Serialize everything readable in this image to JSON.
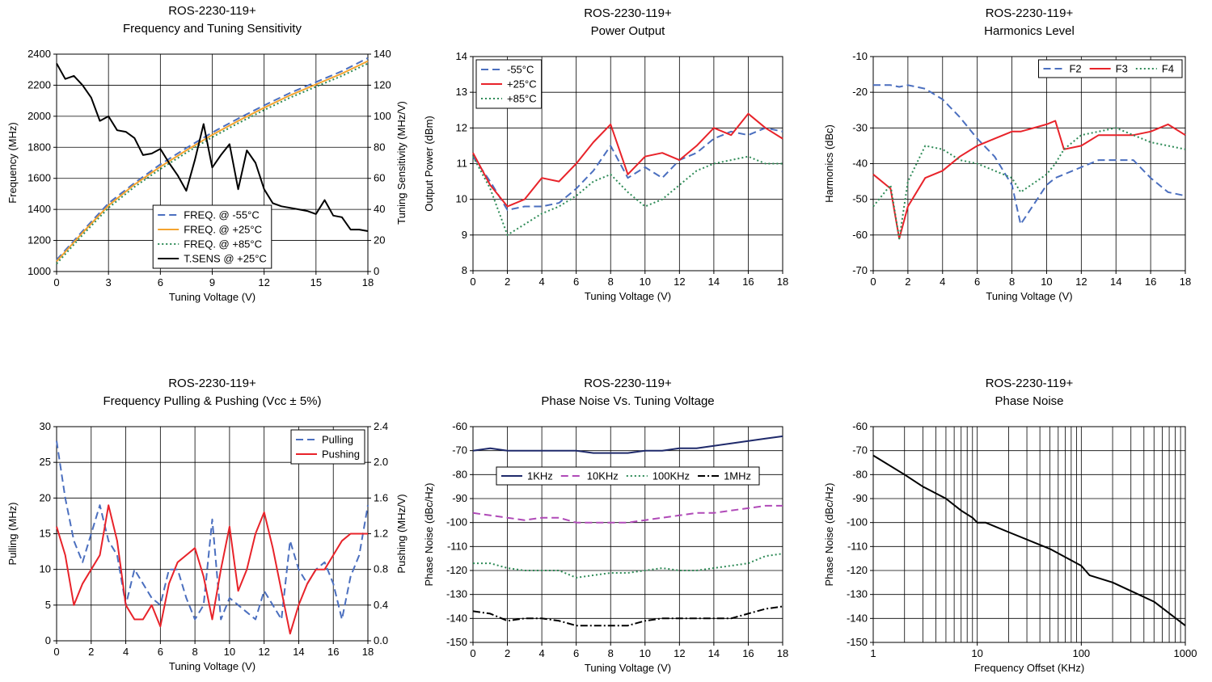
{
  "chart_data": [
    {
      "type": "line",
      "title": "ROS-2230-119+",
      "subtitle": "Frequency and Tuning Sensitivity",
      "xlabel": "Tuning Voltage (V)",
      "ylabel": "Frequency (MHz)",
      "y2label": "Tuning Sensitivity (MHz/V)",
      "xlim": [
        0,
        18
      ],
      "xticks": [
        0,
        3,
        6,
        9,
        12,
        15,
        18
      ],
      "ylim": [
        1000,
        2400
      ],
      "yticks": [
        1000,
        1200,
        1400,
        1600,
        1800,
        2000,
        2200,
        2400
      ],
      "y2lim": [
        0,
        140
      ],
      "y2ticks": [
        0,
        20,
        40,
        60,
        80,
        100,
        120,
        140
      ],
      "grid": true,
      "legend": "lower center",
      "legend_layout": "vertical",
      "series": [
        {
          "name": "FREQ. @ -55°C",
          "color": "#4b6fbf",
          "dash": "dashed",
          "x": [
            0,
            1.5,
            3,
            4.5,
            6,
            7.5,
            9,
            10.5,
            12,
            13.5,
            15,
            16.5,
            18
          ],
          "values": [
            1075,
            1260,
            1440,
            1570,
            1690,
            1795,
            1895,
            1985,
            2070,
            2150,
            2220,
            2290,
            2375
          ]
        },
        {
          "name": "FREQ. @ +25°C",
          "color": "#f4a430",
          "dash": "solid",
          "x": [
            0,
            1.5,
            3,
            4.5,
            6,
            7.5,
            9,
            10.5,
            12,
            13.5,
            15,
            16.5,
            18
          ],
          "values": [
            1065,
            1250,
            1425,
            1560,
            1675,
            1780,
            1880,
            1970,
            2055,
            2135,
            2205,
            2275,
            2355
          ]
        },
        {
          "name": "FREQ. @ +85°C",
          "color": "#2e8b57",
          "dash": "dotted",
          "x": [
            0,
            1.5,
            3,
            4.5,
            6,
            7.5,
            9,
            10.5,
            12,
            13.5,
            15,
            16.5,
            18
          ],
          "values": [
            1050,
            1235,
            1410,
            1545,
            1660,
            1765,
            1865,
            1955,
            2040,
            2120,
            2190,
            2260,
            2340
          ]
        },
        {
          "name": "T.SENS @ +25°C",
          "color": "#000000",
          "dash": "solid",
          "axis": "y2",
          "x": [
            0,
            0.5,
            1,
            1.5,
            2,
            2.5,
            3,
            3.5,
            4,
            4.5,
            5,
            5.5,
            6,
            6.5,
            7,
            7.5,
            8,
            8.5,
            9,
            9.5,
            10,
            10.5,
            11,
            11.5,
            12,
            12.5,
            13,
            13.5,
            14,
            14.5,
            15,
            15.5,
            16,
            16.5,
            17,
            17.5,
            18
          ],
          "values": [
            134,
            124,
            126,
            120,
            112,
            97,
            100,
            91,
            90,
            86,
            75,
            76,
            79,
            70,
            62,
            52,
            72,
            95,
            67,
            75,
            82,
            53,
            78,
            70,
            53,
            44,
            42,
            41,
            40,
            39,
            37,
            46,
            36,
            35,
            27,
            27,
            26
          ]
        }
      ]
    },
    {
      "type": "line",
      "title": "ROS-2230-119+",
      "subtitle": "Power Output",
      "xlabel": "Tuning Voltage (V)",
      "ylabel": "Output Power (dBm)",
      "xlim": [
        0,
        18
      ],
      "xticks": [
        0,
        2,
        4,
        6,
        8,
        10,
        12,
        14,
        16,
        18
      ],
      "ylim": [
        8,
        14
      ],
      "yticks": [
        8,
        9,
        10,
        11,
        12,
        13,
        14
      ],
      "grid": true,
      "legend": "upper left",
      "legend_layout": "vertical",
      "series": [
        {
          "name": "-55°C",
          "color": "#4b6fbf",
          "dash": "dashed",
          "x": [
            0,
            1,
            2,
            3,
            4,
            5,
            6,
            7,
            8,
            9,
            10,
            11,
            12,
            13,
            14,
            15,
            16,
            17,
            18
          ],
          "values": [
            11.2,
            10.5,
            9.7,
            9.8,
            9.8,
            9.9,
            10.3,
            10.8,
            11.5,
            10.6,
            10.9,
            10.6,
            11.1,
            11.3,
            11.7,
            11.9,
            11.8,
            12.0,
            11.9
          ]
        },
        {
          "name": "+25°C",
          "color": "#e8232a",
          "dash": "solid",
          "x": [
            0,
            1,
            2,
            3,
            4,
            5,
            6,
            7,
            8,
            9,
            10,
            11,
            12,
            13,
            14,
            15,
            16,
            17,
            18
          ],
          "values": [
            11.3,
            10.4,
            9.8,
            10.0,
            10.6,
            10.5,
            11.0,
            11.6,
            12.1,
            10.7,
            11.2,
            11.3,
            11.1,
            11.5,
            12.0,
            11.8,
            12.4,
            12.0,
            11.7
          ]
        },
        {
          "name": "+85°C",
          "color": "#2e8b57",
          "dash": "dotted",
          "x": [
            0,
            1,
            2,
            3,
            4,
            5,
            6,
            7,
            8,
            9,
            10,
            11,
            12,
            13,
            14,
            15,
            16,
            17,
            18
          ],
          "values": [
            11.2,
            10.3,
            9.0,
            9.3,
            9.6,
            9.8,
            10.1,
            10.5,
            10.7,
            10.2,
            9.8,
            10.0,
            10.4,
            10.8,
            11.0,
            11.1,
            11.2,
            11.0,
            11.0
          ]
        }
      ]
    },
    {
      "type": "line",
      "title": "ROS-2230-119+",
      "subtitle": "Harmonics Level",
      "xlabel": "Tuning Voltage (V)",
      "ylabel": "Harmonics (dBc)",
      "xlim": [
        0,
        18
      ],
      "xticks": [
        0,
        2,
        4,
        6,
        8,
        10,
        12,
        14,
        16,
        18
      ],
      "ylim": [
        -70,
        -10
      ],
      "yticks": [
        -70,
        -60,
        -50,
        -40,
        -30,
        -20,
        -10
      ],
      "grid": true,
      "legend": "upper right",
      "legend_layout": "horizontal",
      "series": [
        {
          "name": "F2",
          "color": "#4b6fbf",
          "dash": "dashed",
          "x": [
            0,
            1,
            1.5,
            2,
            3,
            4,
            5,
            6,
            7,
            8,
            8.5,
            10,
            10.5,
            11,
            12,
            13,
            14,
            15,
            16,
            17,
            18
          ],
          "values": [
            -18,
            -18,
            -18.5,
            -18,
            -19,
            -22,
            -27,
            -33,
            -38,
            -46,
            -57,
            -46,
            -44,
            -43,
            -41,
            -39,
            -39,
            -39,
            -44,
            -48,
            -49
          ]
        },
        {
          "name": "F3",
          "color": "#e8232a",
          "dash": "solid",
          "x": [
            0,
            1,
            1.5,
            2,
            3,
            4,
            5,
            6,
            7,
            8,
            8.5,
            10,
            10.5,
            11,
            12,
            13,
            14,
            15,
            16,
            17,
            18
          ],
          "values": [
            -43,
            -47,
            -61,
            -52,
            -44,
            -42,
            -38,
            -35,
            -33,
            -31,
            -31,
            -29,
            -28,
            -36,
            -35,
            -32,
            -32,
            -32,
            -31,
            -29,
            -32
          ]
        },
        {
          "name": "F4",
          "color": "#2e8b57",
          "dash": "dotted",
          "x": [
            0,
            1,
            1.5,
            2,
            3,
            4,
            5,
            6,
            7,
            8,
            8.5,
            10,
            10.5,
            11,
            12,
            13,
            14,
            15,
            16,
            17,
            18
          ],
          "values": [
            -52,
            -46,
            -61,
            -45,
            -35,
            -36,
            -39,
            -40,
            -42,
            -44,
            -48,
            -43,
            -40,
            -36,
            -32,
            -31,
            -30,
            -32,
            -34,
            -35,
            -36
          ]
        }
      ]
    },
    {
      "type": "line",
      "title": "ROS-2230-119+",
      "subtitle": "Frequency Pulling & Pushing (Vcc ± 5%)",
      "xlabel": "Tuning Voltage (V)",
      "ylabel": "Pulling (MHz)",
      "y2label": "Pushing (MHz/V)",
      "xlim": [
        0,
        18
      ],
      "xticks": [
        0,
        2,
        4,
        6,
        8,
        10,
        12,
        14,
        16,
        18
      ],
      "ylim": [
        0,
        30
      ],
      "yticks": [
        0,
        5,
        10,
        15,
        20,
        25,
        30
      ],
      "y2lim": [
        0,
        2.4
      ],
      "y2ticks": [
        {
          "value": 0,
          "label": "0.0"
        },
        0.4,
        0.8,
        1.2,
        1.6,
        {
          "value": 2,
          "label": "2.0"
        },
        2.4
      ],
      "grid": true,
      "legend": "upper right",
      "legend_layout": "vertical",
      "series": [
        {
          "name": "Pulling",
          "color": "#4b6fbf",
          "dash": "dashed",
          "x": [
            0,
            0.5,
            1,
            1.5,
            2,
            2.5,
            3,
            3.5,
            4,
            4.5,
            5,
            5.5,
            6,
            6.5,
            7,
            7.5,
            8,
            8.5,
            9,
            9.5,
            10,
            10.5,
            11,
            11.5,
            12,
            12.5,
            13,
            13.5,
            14,
            14.5,
            15,
            15.5,
            16,
            16.5,
            17,
            17.5,
            18
          ],
          "values": [
            28,
            20,
            14,
            11,
            15,
            19,
            14,
            12,
            5,
            10,
            8,
            6,
            5,
            10,
            10,
            6,
            3,
            5,
            17,
            3,
            6,
            5,
            4,
            3,
            7,
            5,
            3,
            14,
            10,
            8,
            10,
            11,
            8,
            3,
            9,
            12,
            19
          ]
        },
        {
          "name": "Pushing",
          "color": "#e8232a",
          "dash": "solid",
          "axis": "y2",
          "x": [
            0,
            0.5,
            1,
            1.5,
            2,
            2.5,
            3,
            3.5,
            4,
            4.5,
            5,
            5.5,
            6,
            6.5,
            7,
            7.5,
            8,
            8.5,
            9,
            9.5,
            10,
            10.5,
            11,
            11.5,
            12,
            12.5,
            13,
            13.5,
            14,
            14.5,
            15,
            15.5,
            16,
            16.5,
            17,
            17.5,
            18
          ],
          "values": [
            1.28,
            0.96,
            0.4,
            0.64,
            0.8,
            0.96,
            1.52,
            1.12,
            0.4,
            0.24,
            0.24,
            0.4,
            0.16,
            0.64,
            0.88,
            0.96,
            1.04,
            0.72,
            0.24,
            0.8,
            1.28,
            0.56,
            0.8,
            1.2,
            1.44,
            1.04,
            0.56,
            0.08,
            0.4,
            0.64,
            0.8,
            0.8,
            0.96,
            1.12,
            1.2,
            1.2,
            1.2
          ]
        }
      ]
    },
    {
      "type": "line",
      "title": "ROS-2230-119+",
      "subtitle": "Phase Noise Vs. Tuning Voltage",
      "xlabel": "Tuning Voltage (V)",
      "ylabel": "Phase Noise (dBc/Hz)",
      "xlim": [
        0,
        18
      ],
      "xticks": [
        0,
        2,
        4,
        6,
        8,
        10,
        12,
        14,
        16,
        18
      ],
      "ylim": [
        -150,
        -60
      ],
      "yticks": [
        -150,
        -140,
        -130,
        -120,
        -110,
        -100,
        -90,
        -80,
        -70,
        -60
      ],
      "grid": true,
      "legend": "upper center",
      "legend_layout": "horizontal",
      "series": [
        {
          "name": "1KHz",
          "color": "#1f2a6b",
          "dash": "solid",
          "x": [
            0,
            1,
            2,
            3,
            4,
            5,
            6,
            7,
            8,
            9,
            10,
            11,
            12,
            13,
            14,
            15,
            16,
            17,
            18
          ],
          "values": [
            -70,
            -69,
            -70,
            -70,
            -70,
            -70,
            -70,
            -71,
            -71,
            -71,
            -70,
            -70,
            -69,
            -69,
            -68,
            -67,
            -66,
            -65,
            -64
          ]
        },
        {
          "name": "10KHz",
          "color": "#b04ab8",
          "dash": "dashed",
          "x": [
            0,
            1,
            2,
            3,
            4,
            5,
            6,
            7,
            8,
            9,
            10,
            11,
            12,
            13,
            14,
            15,
            16,
            17,
            18
          ],
          "values": [
            -96,
            -97,
            -98,
            -99,
            -98,
            -98,
            -100,
            -100,
            -100,
            -100,
            -99,
            -98,
            -97,
            -96,
            -96,
            -95,
            -94,
            -93,
            -93
          ]
        },
        {
          "name": "100KHz",
          "color": "#2e8b57",
          "dash": "dotted",
          "x": [
            0,
            1,
            2,
            3,
            4,
            5,
            6,
            7,
            8,
            9,
            10,
            11,
            12,
            13,
            14,
            15,
            16,
            17,
            18
          ],
          "values": [
            -117,
            -117,
            -119,
            -120,
            -120,
            -120,
            -123,
            -122,
            -121,
            -121,
            -120,
            -119,
            -120,
            -120,
            -119,
            -118,
            -117,
            -114,
            -113
          ]
        },
        {
          "name": "1MHz",
          "color": "#000000",
          "dash": "dashdot",
          "x": [
            0,
            1,
            2,
            3,
            4,
            5,
            6,
            7,
            8,
            9,
            10,
            11,
            12,
            13,
            14,
            15,
            16,
            17,
            18
          ],
          "values": [
            -137,
            -138,
            -141,
            -140,
            -140,
            -141,
            -143,
            -143,
            -143,
            -143,
            -141,
            -140,
            -140,
            -140,
            -140,
            -140,
            -138,
            -136,
            -135
          ]
        }
      ]
    },
    {
      "type": "line",
      "title": "ROS-2230-119+",
      "subtitle": "Phase Noise",
      "xlabel": "Frequency Offset (KHz)",
      "ylabel": "Phase Noise (dBc/Hz)",
      "xscale": "log",
      "xlim": [
        1,
        1000
      ],
      "xticks": [
        1,
        10,
        100,
        1000
      ],
      "ylim": [
        -150,
        -60
      ],
      "yticks": [
        -150,
        -140,
        -130,
        -120,
        -110,
        -100,
        -90,
        -80,
        -70,
        -60
      ],
      "grid": true,
      "series": [
        {
          "color": "#000000",
          "dash": "solid",
          "x": [
            1,
            2,
            3,
            5,
            7,
            9,
            10,
            12,
            20,
            50,
            100,
            120,
            200,
            500,
            1000
          ],
          "values": [
            -72,
            -80,
            -85,
            -90,
            -95,
            -98,
            -100,
            -100,
            -104,
            -111,
            -118,
            -122,
            -125,
            -133,
            -143
          ]
        }
      ]
    }
  ]
}
